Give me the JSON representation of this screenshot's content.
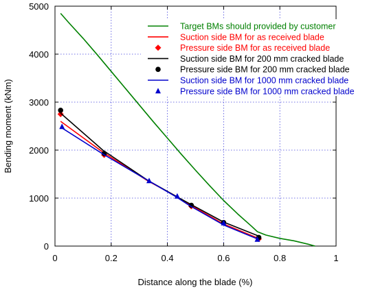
{
  "chart_data": {
    "type": "line",
    "title": "",
    "xlabel": "Distance along the blade (%)",
    "ylabel": "Bending moment (kNm)",
    "xlim": [
      0,
      1
    ],
    "ylim": [
      0,
      5000
    ],
    "xticks": [
      0,
      0.2,
      0.4,
      0.6,
      0.8,
      1
    ],
    "xtick_labels": [
      "0",
      "0.2",
      "0.4",
      "0.6",
      "0.8",
      "1"
    ],
    "yticks": [
      0,
      1000,
      2000,
      3000,
      4000,
      5000
    ],
    "ytick_labels": [
      "0",
      "1000",
      "2000",
      "3000",
      "4000",
      "5000"
    ],
    "grid": true,
    "legend_position": "top-right",
    "series": [
      {
        "name": "Target BMs should provided by customer",
        "kind": "line",
        "color": "#008000",
        "x": [
          0.02,
          0.05,
          0.1,
          0.15,
          0.2,
          0.25,
          0.3,
          0.35,
          0.4,
          0.45,
          0.5,
          0.55,
          0.6,
          0.65,
          0.7,
          0.72,
          0.75,
          0.8,
          0.85,
          0.9,
          0.925
        ],
        "y": [
          4850,
          4650,
          4330,
          3990,
          3640,
          3290,
          2940,
          2590,
          2250,
          1910,
          1580,
          1260,
          950,
          670,
          410,
          300,
          230,
          160,
          110,
          40,
          0
        ]
      },
      {
        "name": "Suction side BM for as received blade",
        "kind": "line",
        "color": "#ff0000",
        "x": [
          0.02,
          0.17,
          0.33,
          0.43,
          0.48,
          0.6,
          0.72
        ],
        "y": [
          2600,
          1960,
          1360,
          1040,
          860,
          460,
          170
        ]
      },
      {
        "name": "Pressure side BM for as received blade",
        "kind": "scatter",
        "marker": "diamond",
        "color": "#ff0000",
        "x": [
          0.02,
          0.175,
          0.485,
          0.725
        ],
        "y": [
          2750,
          1900,
          830,
          150
        ]
      },
      {
        "name": "Suction side BM for 200 mm cracked blade",
        "kind": "line",
        "color": "#000000",
        "x": [
          0.02,
          0.17,
          0.33,
          0.43,
          0.48,
          0.6,
          0.72
        ],
        "y": [
          2770,
          2000,
          1370,
          1040,
          880,
          500,
          220
        ]
      },
      {
        "name": "Pressure side BM for 200 mm cracked blade",
        "kind": "scatter",
        "marker": "circle",
        "color": "#000000",
        "x": [
          0.02,
          0.175,
          0.485,
          0.6,
          0.725
        ],
        "y": [
          2830,
          1930,
          850,
          490,
          180
        ]
      },
      {
        "name": "Suction side BM for 1000 mm cracked blade",
        "kind": "line",
        "color": "#0000cc",
        "x": [
          0.02,
          0.17,
          0.33,
          0.43,
          0.48,
          0.6,
          0.72
        ],
        "y": [
          2480,
          1920,
          1370,
          1030,
          840,
          440,
          150
        ]
      },
      {
        "name": "Pressure side BM for 1000 mm cracked blade",
        "kind": "scatter",
        "marker": "triangle",
        "color": "#0000cc",
        "x": [
          0.025,
          0.335,
          0.435,
          0.6,
          0.72
        ],
        "y": [
          2490,
          1360,
          1040,
          480,
          140
        ]
      }
    ]
  }
}
